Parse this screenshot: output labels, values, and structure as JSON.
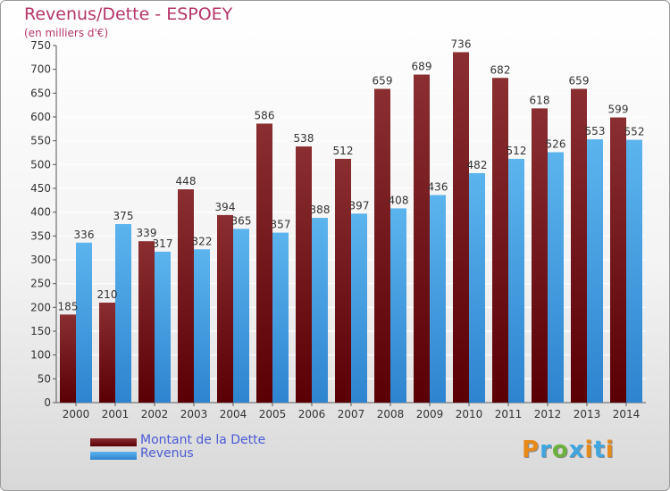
{
  "header": {
    "title": "Revenus/Dette - ESPOEY",
    "subtitle": "(en milliers d'€)"
  },
  "legend": {
    "items": [
      {
        "label": "Montant de la Dette",
        "color": "#7a0f14"
      },
      {
        "label": "Revenus",
        "color": "#3d9be6"
      }
    ]
  },
  "logo": {
    "letters": [
      "P",
      "r",
      "o",
      "x",
      "i",
      "t",
      "i"
    ],
    "colors": [
      "#e88a1a",
      "#3fa6e0",
      "#6ab23c",
      "#3fa6e0",
      "#e88a1a",
      "#3fa6e0",
      "#e88a1a"
    ]
  },
  "colors": {
    "debt_top": "#8a2e31",
    "debt_bottom": "#5a0005",
    "revenue_top": "#5cb4ee",
    "revenue_bottom": "#2e84cf",
    "grid": "#ffffff",
    "tick_text": "#333333"
  },
  "chart_data": {
    "type": "bar",
    "title": "Revenus/Dette - ESPOEY",
    "subtitle": "(en milliers d'€)",
    "categories": [
      "2000",
      "2001",
      "2002",
      "2003",
      "2004",
      "2005",
      "2006",
      "2007",
      "2008",
      "2009",
      "2010",
      "2011",
      "2012",
      "2013",
      "2014"
    ],
    "series": [
      {
        "name": "Montant de la Dette",
        "values": [
          185,
          210,
          339,
          448,
          394,
          586,
          538,
          512,
          659,
          689,
          736,
          682,
          618,
          659,
          599
        ]
      },
      {
        "name": "Revenus",
        "values": [
          336,
          375,
          317,
          322,
          365,
          357,
          388,
          397,
          408,
          436,
          482,
          512,
          526,
          553,
          552
        ]
      }
    ],
    "ylim": [
      0,
      750
    ],
    "ytick_step": 50,
    "grid": true,
    "legend_position": "bottom-left"
  }
}
